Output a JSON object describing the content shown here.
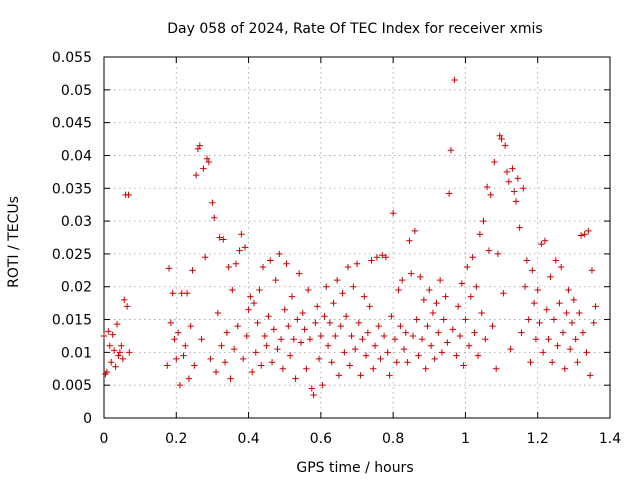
{
  "chart_data": {
    "type": "scatter",
    "title": "Day 058 of 2024, Rate Of TEC Index for receiver xmis",
    "xlabel": "GPS time / hours",
    "ylabel": "ROTI / TECUs",
    "xlim": [
      0,
      1.4
    ],
    "ylim": [
      0,
      0.055
    ],
    "xticks": [
      0,
      0.2,
      0.4,
      0.6,
      0.8,
      1.0,
      1.2,
      1.4
    ],
    "yticks": [
      0,
      0.005,
      0.01,
      0.015,
      0.02,
      0.025,
      0.03,
      0.035,
      0.04,
      0.045,
      0.05,
      0.055
    ],
    "xtick_labels": [
      "0",
      "0.2",
      "0.4",
      "0.6",
      "0.8",
      "1",
      "1.2",
      "1.4"
    ],
    "ytick_labels": [
      "0",
      "0.005",
      "0.01",
      "0.015",
      "0.02",
      "0.025",
      "0.03",
      "0.035",
      "0.04",
      "0.045",
      "0.05",
      "0.055"
    ],
    "grid": true,
    "marker": "+",
    "colors": {
      "points": "#cc0000",
      "grid": "#a0a0a0",
      "axis": "#000000"
    },
    "series": [
      {
        "name": "xmis ROTI",
        "points": [
          [
            0.0,
            0.0125
          ],
          [
            0.004,
            0.0067
          ],
          [
            0.008,
            0.007
          ],
          [
            0.012,
            0.0132
          ],
          [
            0.016,
            0.011
          ],
          [
            0.02,
            0.0085
          ],
          [
            0.024,
            0.0127
          ],
          [
            0.028,
            0.0103
          ],
          [
            0.032,
            0.0078
          ],
          [
            0.036,
            0.0143
          ],
          [
            0.04,
            0.0095
          ],
          [
            0.044,
            0.01
          ],
          [
            0.048,
            0.011
          ],
          [
            0.052,
            0.009
          ],
          [
            0.056,
            0.018
          ],
          [
            0.06,
            0.034
          ],
          [
            0.064,
            0.017
          ],
          [
            0.068,
            0.034
          ],
          [
            0.07,
            0.01
          ],
          [
            0.175,
            0.008
          ],
          [
            0.18,
            0.0228
          ],
          [
            0.185,
            0.0145
          ],
          [
            0.19,
            0.019
          ],
          [
            0.195,
            0.012
          ],
          [
            0.2,
            0.009
          ],
          [
            0.205,
            0.013
          ],
          [
            0.21,
            0.005
          ],
          [
            0.215,
            0.019
          ],
          [
            0.22,
            0.0095
          ],
          [
            0.225,
            0.011
          ],
          [
            0.23,
            0.019
          ],
          [
            0.235,
            0.006
          ],
          [
            0.24,
            0.014
          ],
          [
            0.245,
            0.0225
          ],
          [
            0.25,
            0.008
          ],
          [
            0.255,
            0.037
          ],
          [
            0.26,
            0.041
          ],
          [
            0.265,
            0.0415
          ],
          [
            0.27,
            0.012
          ],
          [
            0.275,
            0.038
          ],
          [
            0.28,
            0.0245
          ],
          [
            0.285,
            0.0395
          ],
          [
            0.29,
            0.039
          ],
          [
            0.295,
            0.009
          ],
          [
            0.3,
            0.0328
          ],
          [
            0.305,
            0.0305
          ],
          [
            0.31,
            0.007
          ],
          [
            0.315,
            0.016
          ],
          [
            0.32,
            0.0275
          ],
          [
            0.325,
            0.011
          ],
          [
            0.33,
            0.0272
          ],
          [
            0.335,
            0.0085
          ],
          [
            0.34,
            0.013
          ],
          [
            0.345,
            0.023
          ],
          [
            0.35,
            0.006
          ],
          [
            0.355,
            0.0195
          ],
          [
            0.36,
            0.0105
          ],
          [
            0.365,
            0.0235
          ],
          [
            0.37,
            0.014
          ],
          [
            0.375,
            0.0255
          ],
          [
            0.38,
            0.028
          ],
          [
            0.385,
            0.009
          ],
          [
            0.39,
            0.026
          ],
          [
            0.395,
            0.0125
          ],
          [
            0.4,
            0.0165
          ],
          [
            0.405,
            0.0185
          ],
          [
            0.41,
            0.007
          ],
          [
            0.415,
            0.0175
          ],
          [
            0.42,
            0.01
          ],
          [
            0.425,
            0.0145
          ],
          [
            0.43,
            0.0195
          ],
          [
            0.435,
            0.008
          ],
          [
            0.44,
            0.023
          ],
          [
            0.445,
            0.0125
          ],
          [
            0.45,
            0.011
          ],
          [
            0.455,
            0.0155
          ],
          [
            0.46,
            0.024
          ],
          [
            0.465,
            0.0085
          ],
          [
            0.47,
            0.0135
          ],
          [
            0.475,
            0.021
          ],
          [
            0.48,
            0.0105
          ],
          [
            0.485,
            0.025
          ],
          [
            0.49,
            0.012
          ],
          [
            0.495,
            0.0075
          ],
          [
            0.5,
            0.0165
          ],
          [
            0.505,
            0.0235
          ],
          [
            0.51,
            0.014
          ],
          [
            0.515,
            0.0095
          ],
          [
            0.52,
            0.0185
          ],
          [
            0.525,
            0.012
          ],
          [
            0.53,
            0.006
          ],
          [
            0.535,
            0.015
          ],
          [
            0.54,
            0.022
          ],
          [
            0.545,
            0.0115
          ],
          [
            0.55,
            0.016
          ],
          [
            0.555,
            0.0135
          ],
          [
            0.56,
            0.0075
          ],
          [
            0.565,
            0.0195
          ],
          [
            0.57,
            0.012
          ],
          [
            0.575,
            0.0045
          ],
          [
            0.58,
            0.0035
          ],
          [
            0.585,
            0.0145
          ],
          [
            0.59,
            0.017
          ],
          [
            0.595,
            0.009
          ],
          [
            0.6,
            0.0125
          ],
          [
            0.605,
            0.005
          ],
          [
            0.61,
            0.0155
          ],
          [
            0.615,
            0.02
          ],
          [
            0.62,
            0.011
          ],
          [
            0.625,
            0.0145
          ],
          [
            0.63,
            0.0085
          ],
          [
            0.635,
            0.0175
          ],
          [
            0.64,
            0.0125
          ],
          [
            0.645,
            0.021
          ],
          [
            0.65,
            0.0065
          ],
          [
            0.655,
            0.014
          ],
          [
            0.66,
            0.019
          ],
          [
            0.665,
            0.01
          ],
          [
            0.67,
            0.0155
          ],
          [
            0.675,
            0.023
          ],
          [
            0.68,
            0.008
          ],
          [
            0.685,
            0.0125
          ],
          [
            0.69,
            0.02
          ],
          [
            0.695,
            0.0105
          ],
          [
            0.7,
            0.0235
          ],
          [
            0.705,
            0.0145
          ],
          [
            0.71,
            0.0065
          ],
          [
            0.715,
            0.012
          ],
          [
            0.72,
            0.0185
          ],
          [
            0.725,
            0.0095
          ],
          [
            0.73,
            0.013
          ],
          [
            0.735,
            0.017
          ],
          [
            0.74,
            0.024
          ],
          [
            0.745,
            0.0075
          ],
          [
            0.75,
            0.011
          ],
          [
            0.755,
            0.0245
          ],
          [
            0.76,
            0.014
          ],
          [
            0.765,
            0.009
          ],
          [
            0.77,
            0.0248
          ],
          [
            0.775,
            0.0125
          ],
          [
            0.78,
            0.0245
          ],
          [
            0.785,
            0.01
          ],
          [
            0.79,
            0.0065
          ],
          [
            0.795,
            0.0155
          ],
          [
            0.8,
            0.0312
          ],
          [
            0.805,
            0.012
          ],
          [
            0.81,
            0.0085
          ],
          [
            0.815,
            0.0195
          ],
          [
            0.82,
            0.014
          ],
          [
            0.825,
            0.021
          ],
          [
            0.83,
            0.0105
          ],
          [
            0.835,
            0.013
          ],
          [
            0.84,
            0.0085
          ],
          [
            0.845,
            0.027
          ],
          [
            0.85,
            0.022
          ],
          [
            0.855,
            0.0125
          ],
          [
            0.86,
            0.0285
          ],
          [
            0.865,
            0.015
          ],
          [
            0.87,
            0.0095
          ],
          [
            0.875,
            0.0215
          ],
          [
            0.88,
            0.012
          ],
          [
            0.885,
            0.018
          ],
          [
            0.89,
            0.0075
          ],
          [
            0.895,
            0.014
          ],
          [
            0.9,
            0.0195
          ],
          [
            0.905,
            0.011
          ],
          [
            0.91,
            0.016
          ],
          [
            0.915,
            0.009
          ],
          [
            0.92,
            0.0175
          ],
          [
            0.925,
            0.013
          ],
          [
            0.93,
            0.021
          ],
          [
            0.935,
            0.01
          ],
          [
            0.94,
            0.015
          ],
          [
            0.945,
            0.0185
          ],
          [
            0.95,
            0.0115
          ],
          [
            0.955,
            0.0342
          ],
          [
            0.96,
            0.0408
          ],
          [
            0.965,
            0.0135
          ],
          [
            0.97,
            0.0515
          ],
          [
            0.975,
            0.0095
          ],
          [
            0.98,
            0.017
          ],
          [
            0.985,
            0.0125
          ],
          [
            0.99,
            0.0205
          ],
          [
            0.995,
            0.008
          ],
          [
            1.0,
            0.015
          ],
          [
            1.005,
            0.023
          ],
          [
            1.01,
            0.011
          ],
          [
            1.015,
            0.0185
          ],
          [
            1.02,
            0.0245
          ],
          [
            1.025,
            0.013
          ],
          [
            1.03,
            0.02
          ],
          [
            1.035,
            0.0095
          ],
          [
            1.04,
            0.028
          ],
          [
            1.045,
            0.016
          ],
          [
            1.05,
            0.03
          ],
          [
            1.055,
            0.012
          ],
          [
            1.06,
            0.0352
          ],
          [
            1.065,
            0.0255
          ],
          [
            1.07,
            0.034
          ],
          [
            1.075,
            0.014
          ],
          [
            1.08,
            0.039
          ],
          [
            1.085,
            0.0075
          ],
          [
            1.09,
            0.025
          ],
          [
            1.095,
            0.043
          ],
          [
            1.1,
            0.0425
          ],
          [
            1.105,
            0.019
          ],
          [
            1.11,
            0.0415
          ],
          [
            1.115,
            0.0375
          ],
          [
            1.12,
            0.036
          ],
          [
            1.125,
            0.0105
          ],
          [
            1.13,
            0.038
          ],
          [
            1.135,
            0.0345
          ],
          [
            1.14,
            0.033
          ],
          [
            1.145,
            0.0365
          ],
          [
            1.15,
            0.029
          ],
          [
            1.155,
            0.013
          ],
          [
            1.16,
            0.035
          ],
          [
            1.165,
            0.02
          ],
          [
            1.17,
            0.024
          ],
          [
            1.175,
            0.015
          ],
          [
            1.18,
            0.0085
          ],
          [
            1.185,
            0.0225
          ],
          [
            1.19,
            0.0175
          ],
          [
            1.195,
            0.012
          ],
          [
            1.2,
            0.0195
          ],
          [
            1.205,
            0.0145
          ],
          [
            1.21,
            0.0265
          ],
          [
            1.215,
            0.01
          ],
          [
            1.22,
            0.027
          ],
          [
            1.225,
            0.0165
          ],
          [
            1.23,
            0.012
          ],
          [
            1.235,
            0.0215
          ],
          [
            1.24,
            0.0085
          ],
          [
            1.245,
            0.015
          ],
          [
            1.25,
            0.024
          ],
          [
            1.255,
            0.011
          ],
          [
            1.26,
            0.0175
          ],
          [
            1.265,
            0.023
          ],
          [
            1.27,
            0.013
          ],
          [
            1.275,
            0.0075
          ],
          [
            1.28,
            0.016
          ],
          [
            1.285,
            0.0195
          ],
          [
            1.29,
            0.0105
          ],
          [
            1.295,
            0.0145
          ],
          [
            1.3,
            0.018
          ],
          [
            1.305,
            0.012
          ],
          [
            1.31,
            0.0085
          ],
          [
            1.315,
            0.016
          ],
          [
            1.32,
            0.0278
          ],
          [
            1.325,
            0.013
          ],
          [
            1.33,
            0.028
          ],
          [
            1.335,
            0.01
          ],
          [
            1.34,
            0.0285
          ],
          [
            1.345,
            0.0065
          ],
          [
            1.35,
            0.0225
          ],
          [
            1.355,
            0.0145
          ],
          [
            1.36,
            0.017
          ]
        ]
      }
    ]
  }
}
